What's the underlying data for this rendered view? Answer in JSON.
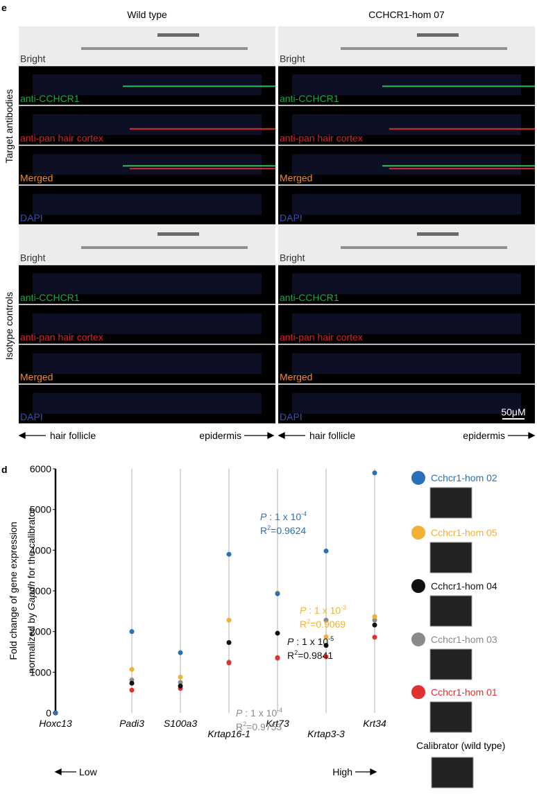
{
  "panel_e": {
    "label": "e",
    "columns": [
      "Wild type",
      "CCHCR1-hom 07"
    ],
    "groups": [
      "Target antibodies",
      "Isotype controls"
    ],
    "channels": [
      "Bright",
      "anti-CCHCR1",
      "anti-pan hair cortex",
      "Merged",
      "DAPI"
    ],
    "scale_bar": "50μM",
    "direction_labels": [
      "hair follicle",
      "epidermis"
    ]
  },
  "chart_data": {
    "type": "scatter",
    "label": "d",
    "y_label": [
      "Fold change of gene expression",
      "normalized by ",
      "Gapdh",
      " for the calibrator"
    ],
    "categories": [
      "Hoxc13",
      "Padi3",
      "S100a3",
      "Krtap16-1",
      "Krt73",
      "Krtap3-3",
      "Krt34"
    ],
    "ylim": [
      0,
      6000
    ],
    "yticks": [
      0,
      1000,
      2000,
      3000,
      4000,
      5000,
      6000
    ],
    "series": [
      {
        "name": "Cchcr1-hom 02",
        "color": "#2a6fb8",
        "values": [
          0,
          2000,
          1480,
          3900,
          2930,
          3980,
          5900
        ]
      },
      {
        "name": "Cchcr1-hom 05",
        "color": "#f2b134",
        "values": [
          0,
          1070,
          880,
          2280,
          2950,
          1870,
          2370
        ]
      },
      {
        "name": "Cchcr1-hom 04",
        "color": "#111111",
        "values": [
          0,
          730,
          660,
          1730,
          1960,
          1660,
          2160
        ]
      },
      {
        "name": "Cchcr1-hom 03",
        "color": "#8a8a8a",
        "values": [
          0,
          810,
          750,
          1250,
          1340,
          2280,
          2280
        ]
      },
      {
        "name": "Cchcr1-hom 01",
        "color": "#e23030",
        "values": [
          0,
          560,
          600,
          1230,
          1360,
          1380,
          1860
        ]
      }
    ],
    "annotations": [
      {
        "p": "P",
        "p_text": " : 1 x 10",
        "p_exp": "-4",
        "r": "R",
        "r_exp": "2",
        "r_text": "=0.9624",
        "color": "#2a6fb8"
      },
      {
        "p": "P",
        "p_text": " : 1 x 10",
        "p_exp": "-3",
        "r": "R",
        "r_exp": "2",
        "r_text": "=0.9069",
        "color": "#f2b134"
      },
      {
        "p": "P",
        "p_text": " : 1 x 10",
        "p_exp": "-5",
        "r": "R",
        "r_exp": "2",
        "r_text": "=0.9841",
        "color": "#111111"
      },
      {
        "p": "P",
        "p_text": " : 1 x 10",
        "p_exp": "-4",
        "r": "R",
        "r_exp": "2",
        "r_text": "=0.9753",
        "color": "#8a8a8a"
      }
    ],
    "calibrator_label": "Calibrator (wild type)",
    "direction_labels": [
      "Low",
      "High"
    ]
  }
}
